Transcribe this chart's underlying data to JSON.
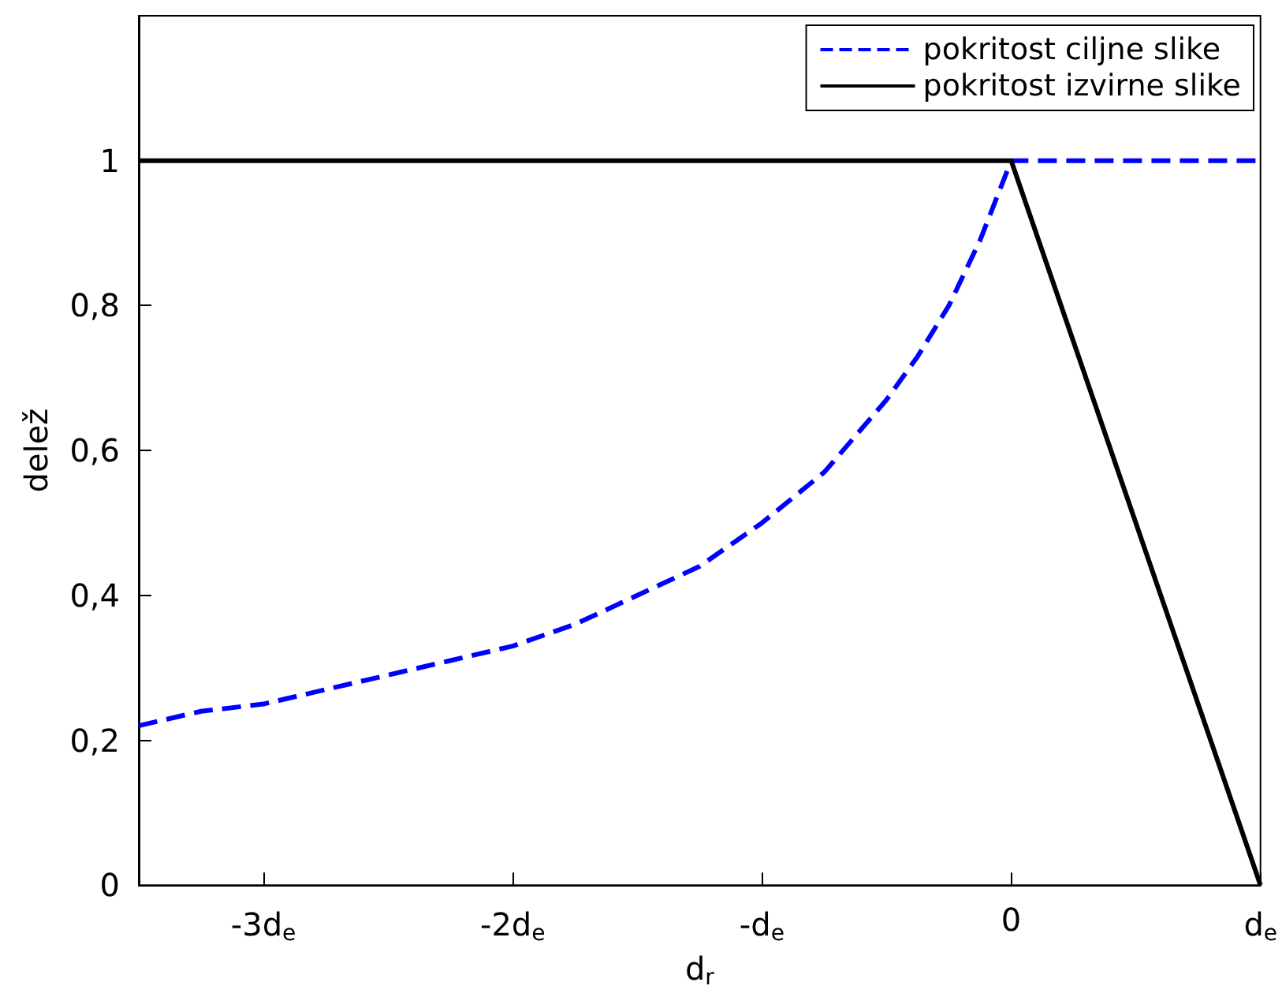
{
  "chart_data": {
    "type": "line",
    "xlabel": "d$_{r}$",
    "ylabel": "delež",
    "xlim": [
      -3.5,
      1
    ],
    "xticks": [
      {
        "value": -3,
        "label": "-3d$_{e}$"
      },
      {
        "value": -2,
        "label": "-2d$_{e}$"
      },
      {
        "value": -1,
        "label": "-d$_{e}$"
      },
      0,
      {
        "value": 1,
        "label": "d$_{e}$"
      }
    ],
    "ylim": [
      0,
      1.2
    ],
    "yticks": [
      0,
      {
        "value": 0.2,
        "label": "0,2"
      },
      {
        "value": 0.4,
        "label": "0,4"
      },
      {
        "value": 0.6,
        "label": "0,6"
      },
      {
        "value": 0.8,
        "label": "0,8"
      },
      1
    ],
    "grid": false,
    "legend": "top right",
    "marker": "none",
    "series": [
      {
        "name": "pokritost ciljne slike",
        "color": "#0000ff",
        "line_style": "dashed",
        "x": [
          -3.5,
          -3.25,
          -3,
          -2.75,
          -2.5,
          -2.25,
          -2,
          -1.75,
          -1.5,
          -1.25,
          -1,
          -0.75,
          -0.5,
          -0.375,
          -0.25,
          -0.125,
          0,
          1
        ],
        "values": [
          0.22,
          0.24,
          0.25,
          0.27,
          0.29,
          0.31,
          0.33,
          0.36,
          0.4,
          0.44,
          0.5,
          0.57,
          0.67,
          0.73,
          0.8,
          0.89,
          1,
          1
        ]
      },
      {
        "name": "pokritost izvirne slike",
        "color": "#000000",
        "line_style": "solid",
        "x": [
          -3.5,
          0,
          1
        ],
        "values": [
          1,
          1,
          0
        ]
      }
    ]
  }
}
